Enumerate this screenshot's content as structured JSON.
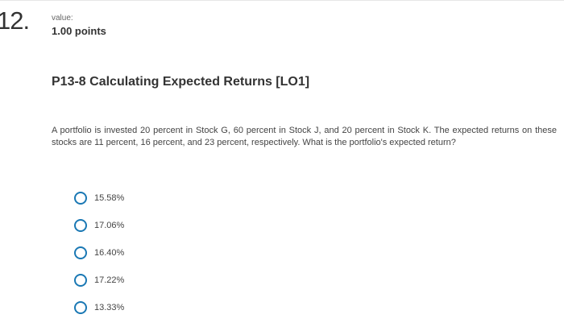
{
  "question": {
    "number": "12.",
    "value_label": "value:",
    "points": "1.00 points",
    "title": "P13-8 Calculating Expected Returns [LO1]",
    "text": "A portfolio is invested 20 percent in Stock G, 60 percent in Stock J, and 20 percent in Stock K. The expected returns on these stocks are 11 percent, 16 percent, and 23 percent, respectively. What is the portfolio's expected return?"
  },
  "options": [
    {
      "label": "15.58%",
      "icon": "radio-unselected"
    },
    {
      "label": "17.06%",
      "icon": "radio-unselected"
    },
    {
      "label": "16.40%",
      "icon": "radio-unselected"
    },
    {
      "label": "17.22%",
      "icon": "radio-unselected"
    },
    {
      "label": "13.33%",
      "icon": "radio-unselected"
    }
  ],
  "colors": {
    "radio_accent": "#1a78b4",
    "text": "#333333"
  }
}
